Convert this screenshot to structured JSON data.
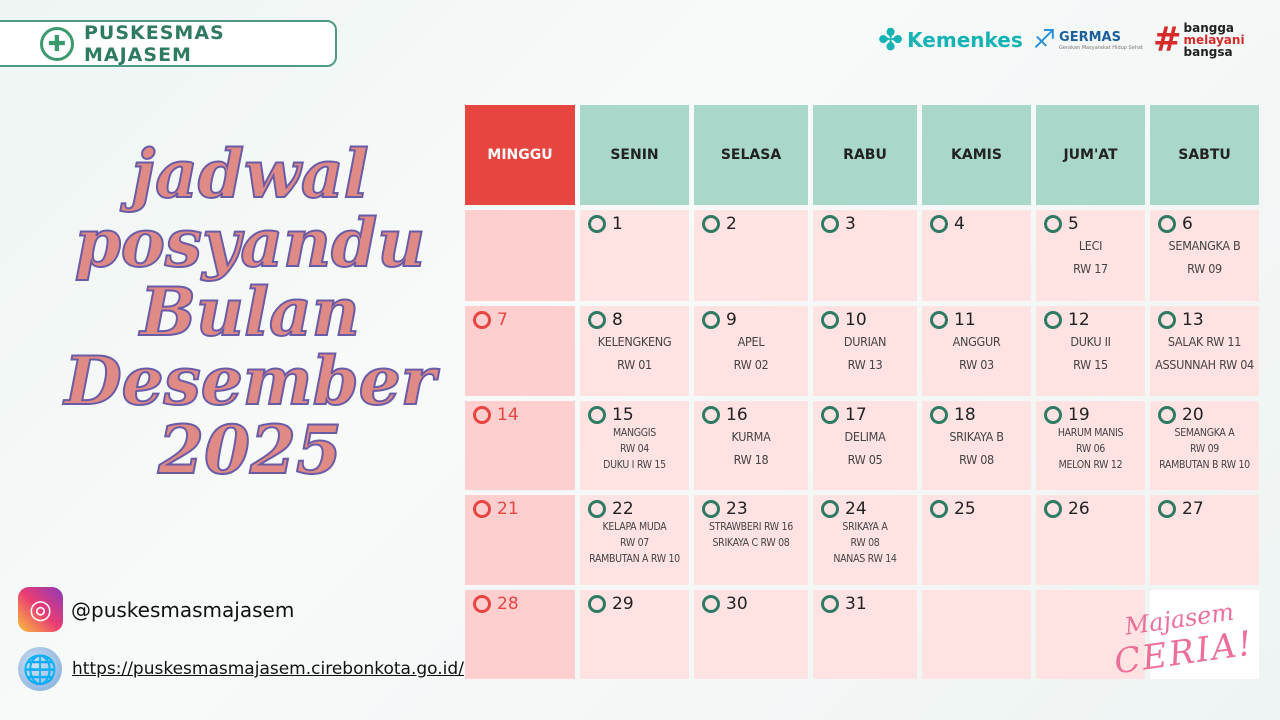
{
  "brand": {
    "name": "PUSKESMAS MAJASEM",
    "icon": "medical-cross-icon"
  },
  "logos": {
    "kemenkes": "Kemenkes",
    "germas": "GERMAS",
    "germas_sub": "Gerakan Masyarakat Hidup Sehat",
    "bangga": [
      "bangga",
      "melayani",
      "bangsa"
    ]
  },
  "title": [
    "jadwal",
    "posyandu",
    "Bulan",
    "Desember",
    "2025"
  ],
  "social": {
    "instagram": "@puskesmasmajasem",
    "website": "https://puskesmasmajasem.cirebonkota.go.id/"
  },
  "colors": {
    "header": "#a9d7c9",
    "sunday_header": "#e64540",
    "cell": "#ffe2e2",
    "sunday_cell": "#ffcfd0",
    "ring": "#2e7a63"
  },
  "calendar": {
    "days": [
      "MINGGU",
      "SENIN",
      "SELASA",
      "RABU",
      "KAMIS",
      "JUM'AT",
      "SABTU"
    ],
    "weeks": [
      [
        null,
        {
          "day": "1",
          "lines": []
        },
        {
          "day": "2",
          "lines": []
        },
        {
          "day": "3",
          "lines": []
        },
        {
          "day": "4",
          "lines": []
        },
        {
          "day": "5",
          "lines": [
            "LECI",
            "RW 17"
          ]
        },
        {
          "day": "6",
          "lines": [
            "SEMANGKA B",
            "RW 09"
          ]
        }
      ],
      [
        {
          "day": "7",
          "lines": []
        },
        {
          "day": "8",
          "lines": [
            "KELENGKENG",
            "RW 01"
          ]
        },
        {
          "day": "9",
          "lines": [
            "APEL",
            "RW 02"
          ]
        },
        {
          "day": "10",
          "lines": [
            "DURIAN",
            "RW 13"
          ]
        },
        {
          "day": "11",
          "lines": [
            "ANGGUR",
            "RW 03"
          ]
        },
        {
          "day": "12",
          "lines": [
            "DUKU II",
            "RW 15"
          ]
        },
        {
          "day": "13",
          "lines": [
            "SALAK RW 11",
            "ASSUNNAH RW 04"
          ]
        }
      ],
      [
        {
          "day": "14",
          "lines": []
        },
        {
          "day": "15",
          "lines": [
            "MANGGIS",
            "RW 04",
            "DUKU I RW 15"
          ]
        },
        {
          "day": "16",
          "lines": [
            "KURMA",
            "RW 18"
          ]
        },
        {
          "day": "17",
          "lines": [
            "DELIMA",
            "RW 05"
          ]
        },
        {
          "day": "18",
          "lines": [
            "SRIKAYA B",
            "RW 08"
          ]
        },
        {
          "day": "19",
          "lines": [
            "HARUM MANIS",
            "RW 06",
            "MELON RW 12"
          ]
        },
        {
          "day": "20",
          "lines": [
            "SEMANGKA A",
            "RW 09",
            "RAMBUTAN B RW 10"
          ]
        }
      ],
      [
        {
          "day": "21",
          "lines": []
        },
        {
          "day": "22",
          "lines": [
            "KELAPA MUDA",
            "RW 07",
            "RAMBUTAN A RW 10"
          ]
        },
        {
          "day": "23",
          "lines": [
            "STRAWBERI RW 16",
            "SRIKAYA C RW 08"
          ]
        },
        {
          "day": "24",
          "lines": [
            "SRIKAYA A",
            "RW 08",
            "NANAS RW 14"
          ]
        },
        {
          "day": "25",
          "lines": []
        },
        {
          "day": "26",
          "lines": []
        },
        {
          "day": "27",
          "lines": []
        }
      ],
      [
        {
          "day": "28",
          "lines": []
        },
        {
          "day": "29",
          "lines": []
        },
        {
          "day": "30",
          "lines": []
        },
        {
          "day": "31",
          "lines": []
        },
        null,
        null,
        "blank"
      ]
    ]
  },
  "slogan": [
    "Majasem",
    "CERIA!"
  ]
}
